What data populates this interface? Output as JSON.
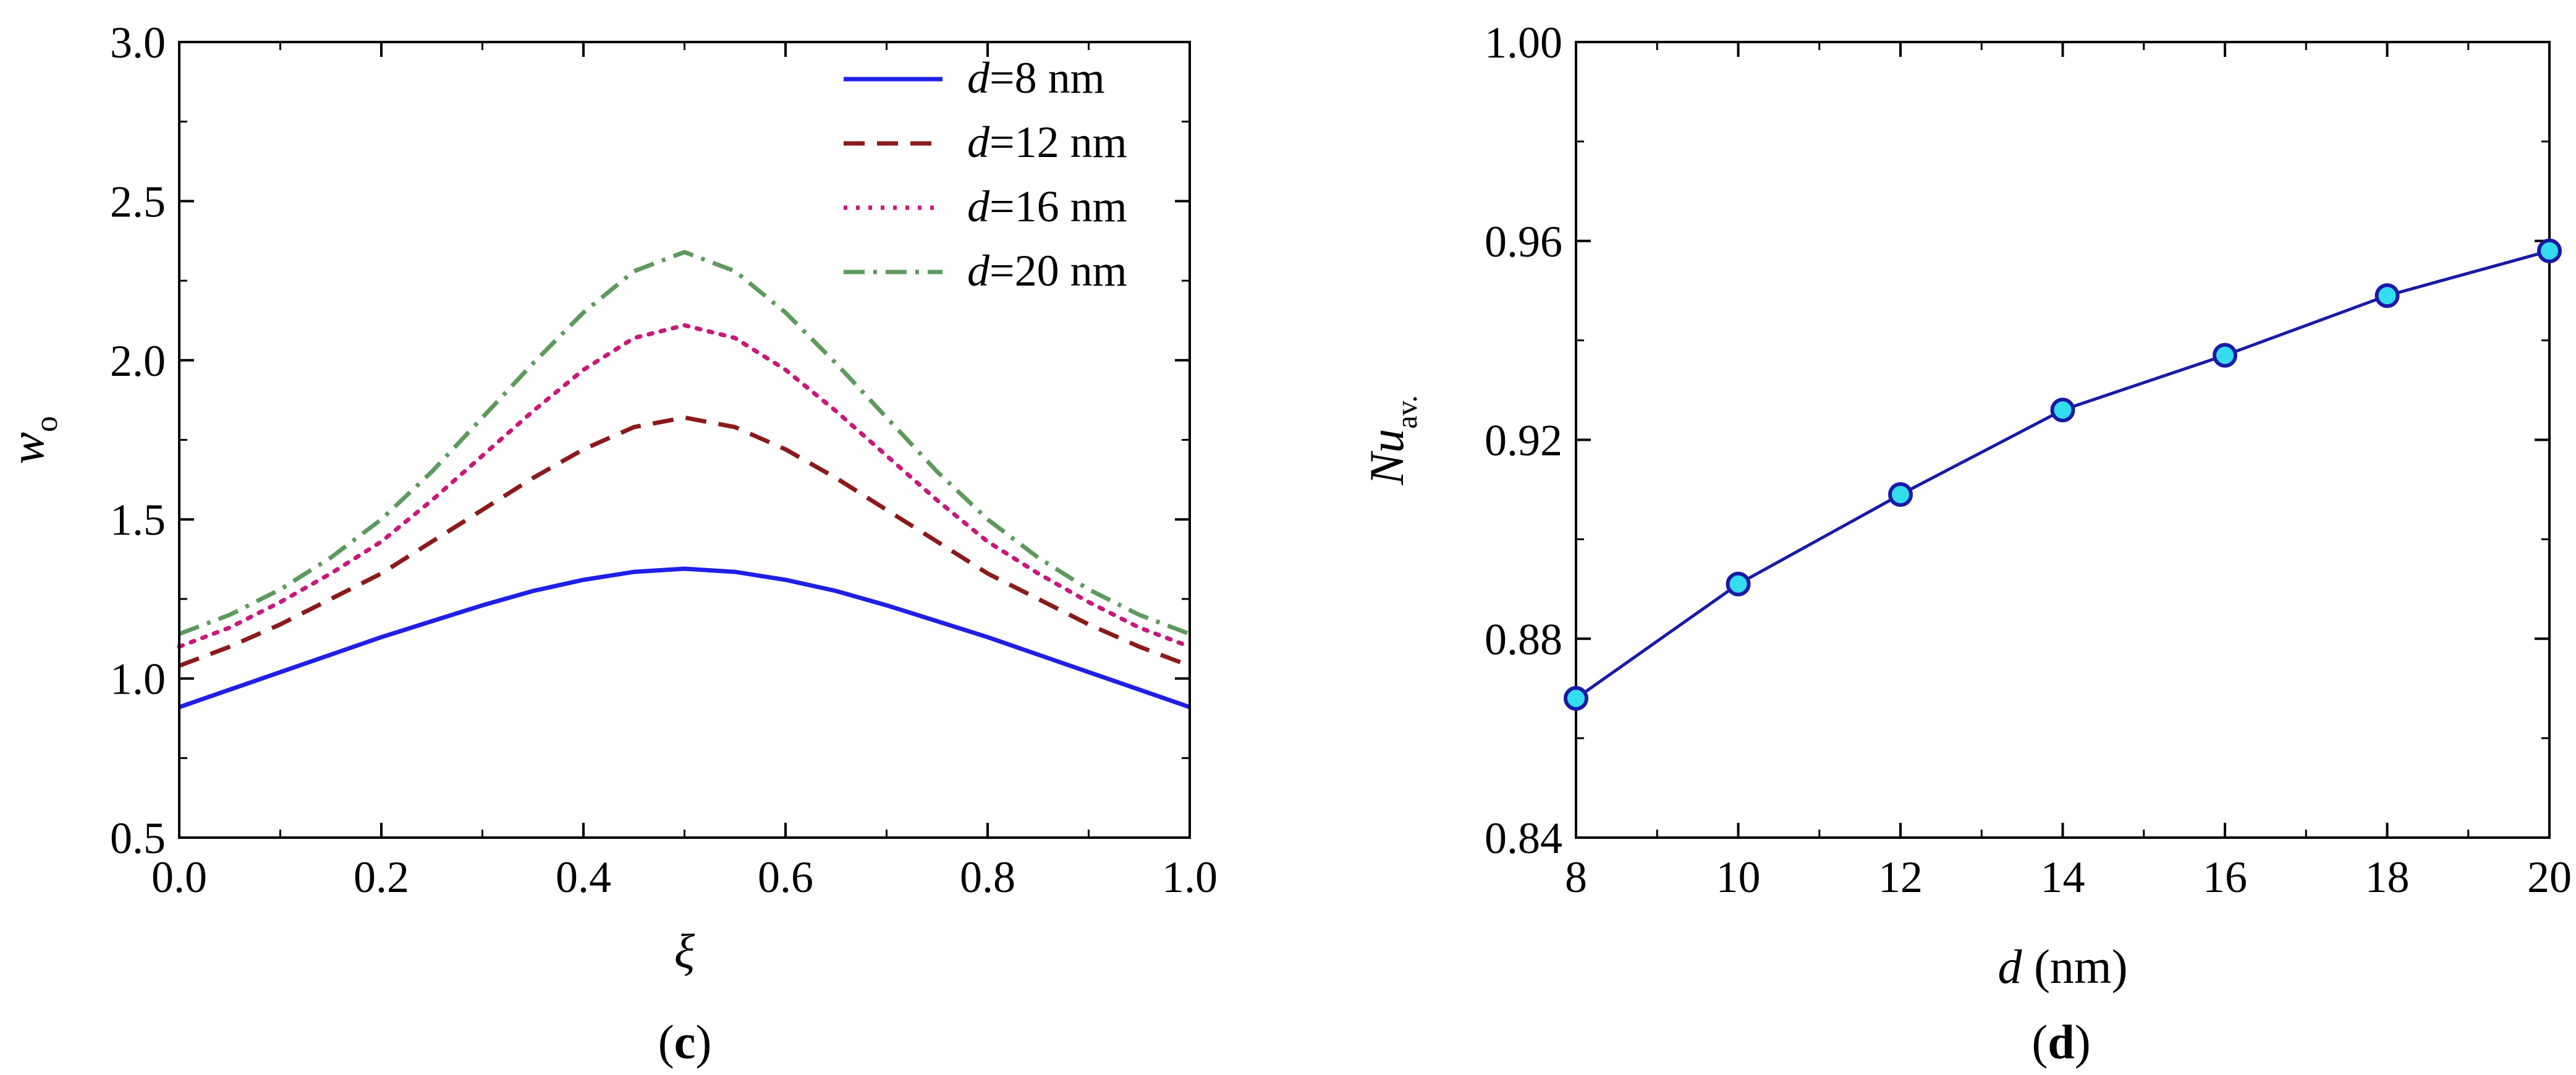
{
  "chart_data": [
    {
      "type": "line",
      "panel_label": "c",
      "xlabel": "ξ",
      "ylabel_main": "w",
      "ylabel_sub": "o",
      "xlim": [
        0,
        1
      ],
      "ylim": [
        0.5,
        3.0
      ],
      "xticks": [
        "0.0",
        "0.2",
        "0.4",
        "0.6",
        "0.8",
        "1.0"
      ],
      "yticks": [
        "0.5",
        "1.0",
        "1.5",
        "2.0",
        "2.5",
        "3.0"
      ],
      "legend_position": "top-right",
      "x": [
        0.0,
        0.05,
        0.1,
        0.15,
        0.2,
        0.25,
        0.3,
        0.35,
        0.4,
        0.45,
        0.5,
        0.55,
        0.6,
        0.65,
        0.7,
        0.75,
        0.8,
        0.85,
        0.9,
        0.95,
        1.0
      ],
      "series": [
        {
          "name": "d=8 nm",
          "legend_var": "d",
          "legend_rest": "=8 nm",
          "color": "#1f1fe6",
          "dash": "solid",
          "values": [
            0.91,
            0.965,
            1.02,
            1.075,
            1.13,
            1.18,
            1.23,
            1.275,
            1.31,
            1.335,
            1.345,
            1.335,
            1.31,
            1.275,
            1.23,
            1.18,
            1.13,
            1.075,
            1.02,
            0.965,
            0.91
          ]
        },
        {
          "name": "d=12 nm",
          "legend_var": "d",
          "legend_rest": "=12 nm",
          "color": "#8b1a1a",
          "dash": "dashed",
          "values": [
            1.04,
            1.1,
            1.17,
            1.25,
            1.33,
            1.43,
            1.53,
            1.63,
            1.72,
            1.79,
            1.82,
            1.79,
            1.72,
            1.63,
            1.53,
            1.43,
            1.33,
            1.25,
            1.17,
            1.1,
            1.04
          ]
        },
        {
          "name": "d=16 nm",
          "legend_var": "d",
          "legend_rest": "=16 nm",
          "color": "#c8197a",
          "dash": "dotted",
          "values": [
            1.1,
            1.16,
            1.24,
            1.33,
            1.43,
            1.56,
            1.7,
            1.84,
            1.97,
            2.07,
            2.11,
            2.07,
            1.97,
            1.84,
            1.7,
            1.56,
            1.43,
            1.33,
            1.24,
            1.16,
            1.1
          ]
        },
        {
          "name": "d=20 nm",
          "legend_var": "d",
          "legend_rest": "=20 nm",
          "color": "#5e9a5e",
          "dash": "dashdot",
          "values": [
            1.14,
            1.2,
            1.28,
            1.38,
            1.5,
            1.65,
            1.82,
            1.99,
            2.15,
            2.28,
            2.34,
            2.28,
            2.15,
            1.99,
            1.82,
            1.65,
            1.5,
            1.38,
            1.28,
            1.2,
            1.14
          ]
        }
      ]
    },
    {
      "type": "line",
      "panel_label": "d",
      "xlabel_var": "d",
      "xlabel_rest": " (nm)",
      "ylabel_main": "Nu",
      "ylabel_sub": "av.",
      "xlim": [
        8,
        20
      ],
      "ylim": [
        0.84,
        1.0
      ],
      "xticks": [
        "8",
        "10",
        "12",
        "14",
        "16",
        "18",
        "20"
      ],
      "yticks": [
        "0.84",
        "0.88",
        "0.92",
        "0.96",
        "1.00"
      ],
      "marker": "circle",
      "line_color": "#1a1aa6",
      "marker_fill": "#33ddee",
      "marker_edge": "#1a1aa6",
      "x": [
        8,
        10,
        12,
        14,
        16,
        18,
        20
      ],
      "values": [
        0.868,
        0.891,
        0.909,
        0.926,
        0.937,
        0.949,
        0.958
      ]
    }
  ]
}
